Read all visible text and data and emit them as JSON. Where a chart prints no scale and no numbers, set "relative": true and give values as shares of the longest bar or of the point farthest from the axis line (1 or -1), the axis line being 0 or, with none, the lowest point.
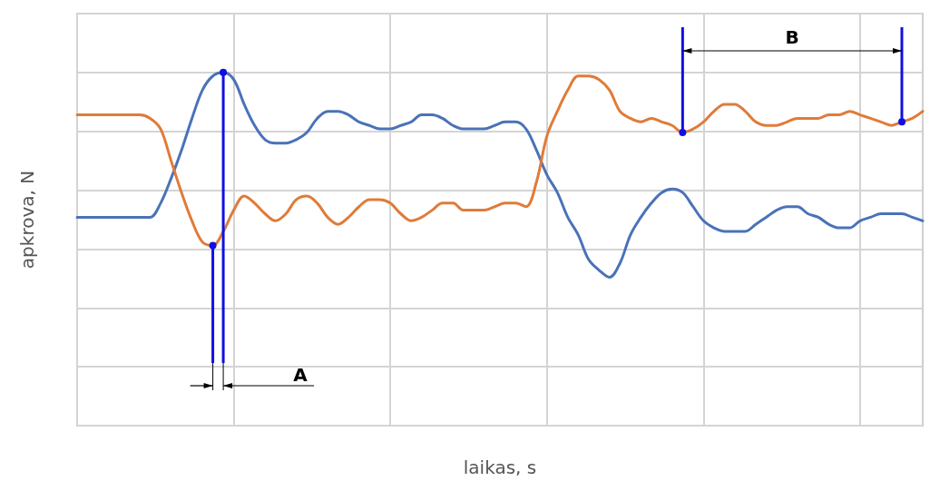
{
  "chart_data": {
    "type": "line",
    "relative": true,
    "xlabel": "laikas, s",
    "ylabel": "apkrova, N",
    "grid": true,
    "marker": "none",
    "line_style": "solid",
    "categories": [
      null,
      null,
      null,
      null,
      null,
      null,
      null,
      null,
      null,
      null,
      null,
      null,
      null,
      null,
      null,
      null,
      null,
      null,
      null,
      null,
      null,
      null,
      null,
      null,
      null,
      null,
      null,
      null,
      null,
      null,
      null,
      null,
      null,
      null,
      null,
      null,
      null,
      null,
      null,
      null,
      null,
      null,
      null,
      null,
      null,
      null,
      null,
      null,
      null,
      null,
      null,
      null,
      null,
      null,
      null,
      null,
      null,
      null,
      null,
      null,
      null,
      null,
      null,
      null,
      null,
      null,
      null,
      null,
      null,
      null,
      null,
      null,
      null,
      null,
      null,
      null,
      null,
      null,
      null,
      null,
      null,
      null
    ],
    "series": [
      {
        "color": "#4a72b8",
        "values": [
          0.59,
          0.59,
          0.59,
          0.59,
          0.59,
          0.59,
          0.59,
          0.59,
          0.63,
          0.7,
          0.78,
          0.87,
          0.95,
          0.99,
          1.0,
          0.98,
          0.91,
          0.85,
          0.81,
          0.8,
          0.8,
          0.81,
          0.83,
          0.87,
          0.89,
          0.89,
          0.88,
          0.86,
          0.85,
          0.84,
          0.84,
          0.85,
          0.86,
          0.88,
          0.88,
          0.87,
          0.85,
          0.84,
          0.84,
          0.84,
          0.85,
          0.86,
          0.86,
          0.84,
          0.78,
          0.71,
          0.66,
          0.59,
          0.54,
          0.47,
          0.44,
          0.42,
          0.46,
          0.54,
          0.59,
          0.63,
          0.66,
          0.67,
          0.66,
          0.62,
          0.58,
          0.56,
          0.55,
          0.55,
          0.55,
          0.57,
          0.59,
          0.61,
          0.62,
          0.62,
          0.6,
          0.59,
          0.57,
          0.56,
          0.56,
          0.58,
          0.59,
          0.6,
          0.6,
          0.6,
          0.59,
          0.58
        ]
      },
      {
        "color": "#e07b39",
        "values": [
          0.88,
          0.88,
          0.88,
          0.88,
          0.88,
          0.88,
          0.88,
          0.87,
          0.84,
          0.75,
          0.66,
          0.58,
          0.52,
          0.51,
          0.55,
          0.61,
          0.65,
          0.63,
          0.6,
          0.58,
          0.6,
          0.64,
          0.65,
          0.63,
          0.59,
          0.57,
          0.59,
          0.62,
          0.64,
          0.64,
          0.63,
          0.6,
          0.58,
          0.59,
          0.61,
          0.63,
          0.63,
          0.61,
          0.61,
          0.61,
          0.62,
          0.63,
          0.63,
          0.62,
          0.69,
          0.82,
          0.89,
          0.95,
          0.99,
          0.99,
          0.98,
          0.95,
          0.89,
          0.87,
          0.86,
          0.87,
          0.86,
          0.85,
          0.83,
          0.84,
          0.86,
          0.89,
          0.91,
          0.91,
          0.89,
          0.86,
          0.85,
          0.85,
          0.86,
          0.87,
          0.87,
          0.87,
          0.88,
          0.88,
          0.89,
          0.88,
          0.87,
          0.86,
          0.85,
          0.86,
          0.87,
          0.89
        ]
      }
    ],
    "annotations": [
      "A",
      "B"
    ]
  }
}
